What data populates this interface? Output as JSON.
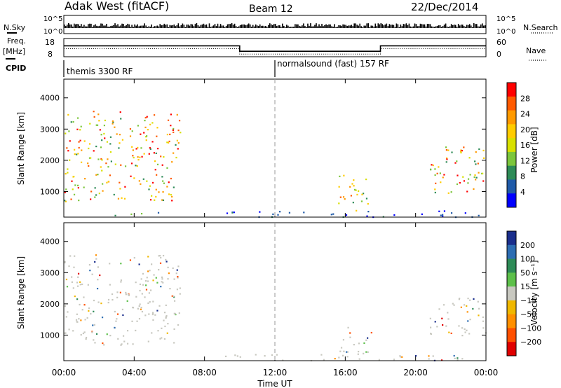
{
  "header": {
    "station": "Adak West (fitACF)",
    "beam": "Beam 12",
    "date": "22/Dec/2014"
  },
  "strip_labels": {
    "nsky": "N.Sky",
    "nsearch": "N.Search",
    "freq": "Freq.",
    "freq_unit": "[MHz]",
    "nave": "Nave",
    "cpid": "CPID",
    "nsky_ticks": [
      "10^5",
      "10^0"
    ],
    "nsearch_ticks": [
      "10^5",
      "10^0"
    ],
    "freq_ticks": [
      "18",
      "8"
    ],
    "nave_ticks": [
      "60",
      "0"
    ]
  },
  "cpid_entries": [
    {
      "label": "themis 3300 RF",
      "start_hour": 0
    },
    {
      "label": "normalsound (fast) 157 RF",
      "start_hour": 12
    }
  ],
  "frequency_trace": {
    "hours": [
      0,
      10,
      10,
      18,
      18,
      24
    ],
    "mhz": [
      14,
      14,
      11,
      11,
      14,
      14
    ]
  },
  "axes": {
    "ylabel": "Slant Range [km]",
    "xlabel": "Time UT",
    "x_ticks": [
      "00:00",
      "04:00",
      "08:00",
      "12:00",
      "16:00",
      "20:00",
      "00:00"
    ],
    "x_tick_hours": [
      0,
      4,
      8,
      12,
      16,
      20,
      24
    ],
    "y_ticks": [
      1000,
      2000,
      3000,
      4000
    ],
    "xlim_hours": [
      0,
      24
    ],
    "ylim_km": [
      180,
      4600
    ]
  },
  "colorbars": {
    "power": {
      "label": "Power [dB]",
      "ticks": [
        "28",
        "24",
        "20",
        "16",
        "12",
        "8",
        "4"
      ],
      "colors": [
        "#ff0000",
        "#ff5a00",
        "#ff9a00",
        "#ffcc00",
        "#d8e000",
        "#7cc63c",
        "#2e8b57",
        "#1f5aa8",
        "#0000ff"
      ]
    },
    "velocity": {
      "label": "Velocity [m s⁻¹]",
      "ticks": [
        "200",
        "100",
        "50",
        "15",
        "−15",
        "−50",
        "−100",
        "−200"
      ],
      "colors": [
        "#1a2e8c",
        "#2d6db3",
        "#2e8b57",
        "#5dc04a",
        "#c8c8c0",
        "#f0b800",
        "#ff9000",
        "#ff5000",
        "#e00000"
      ]
    }
  },
  "chart_data": [
    {
      "type": "heatmap",
      "title": "Power",
      "xlabel": "Time UT",
      "ylabel": "Slant Range [km]",
      "colorbar_label": "Power [dB]",
      "x_range_hours": [
        0,
        24
      ],
      "y_range_km": [
        180,
        4600
      ],
      "regions": [
        {
          "name": "morning-ionospheric",
          "hours": [
            0,
            6.6
          ],
          "km": [
            700,
            3600
          ],
          "power_db_peak": 28
        },
        {
          "name": "near-range-ground",
          "hours": [
            2.5,
            6
          ],
          "km": [
            250,
            350
          ],
          "power_db_peak": 16
        },
        {
          "name": "afternoon-band",
          "hours": [
            15.5,
            17.3
          ],
          "km": [
            400,
            1600
          ],
          "power_db_peak": 24
        },
        {
          "name": "evening-ionospheric",
          "hours": [
            20.8,
            24
          ],
          "km": [
            900,
            2500
          ],
          "power_db_peak": 28
        },
        {
          "name": "near-range-scatter",
          "hours": [
            9,
            24
          ],
          "km": [
            200,
            400
          ],
          "power_db_peak": 8
        }
      ]
    },
    {
      "type": "heatmap",
      "title": "Velocity",
      "xlabel": "Time UT",
      "ylabel": "Slant Range [km]",
      "colorbar_label": "Velocity [m s-1]",
      "x_range_hours": [
        0,
        24
      ],
      "y_range_km": [
        180,
        4600
      ],
      "regions": [
        {
          "name": "morning-ionospheric",
          "hours": [
            0,
            6.6
          ],
          "km": [
            700,
            3600
          ],
          "velocity_dominant": "-15 to 15"
        },
        {
          "name": "afternoon-band",
          "hours": [
            15.5,
            17.5
          ],
          "km": [
            400,
            1300
          ],
          "velocity_dominant": "-15 to 15"
        },
        {
          "name": "evening-ionospheric",
          "hours": [
            20.8,
            24
          ],
          "km": [
            1000,
            2200
          ],
          "velocity_dominant": "-15 to 15"
        },
        {
          "name": "near-range-scatter",
          "hours": [
            9,
            24
          ],
          "km": [
            200,
            400
          ],
          "velocity_dominant": "-50 to 50"
        }
      ]
    }
  ]
}
